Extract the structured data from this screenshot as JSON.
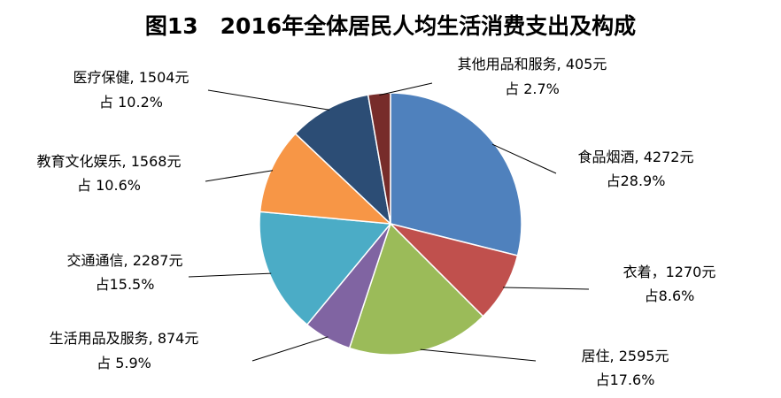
{
  "chart_data": {
    "type": "pie",
    "title": "图13　2016年全体居民人均生活消费支出及构成",
    "slices": [
      {
        "name": "食品烟酒",
        "value": 4272,
        "line1": "食品烟酒, 4272元",
        "line2": "占28.9%",
        "color": "#4F81BD"
      },
      {
        "name": "衣着",
        "value": 1270,
        "line1": "衣着，1270元",
        "line2": "占8.6%",
        "color": "#C0504D"
      },
      {
        "name": "居住",
        "value": 2595,
        "line1": "居住, 2595元",
        "line2": "占17.6%",
        "color": "#9BBB59"
      },
      {
        "name": "生活用品及服务",
        "value": 874,
        "line1": "生活用品及服务, 874元",
        "line2": "占 5.9%",
        "color": "#8064A2"
      },
      {
        "name": "交通通信",
        "value": 2287,
        "line1": "交通通信, 2287元",
        "line2": "占15.5%",
        "color": "#4BACC6"
      },
      {
        "name": "教育文化娱乐",
        "value": 1568,
        "line1": "教育文化娱乐, 1568元",
        "line2": "占 10.6%",
        "color": "#F79646"
      },
      {
        "name": "医疗保健",
        "value": 1504,
        "line1": "医疗保健, 1504元",
        "line2": "占 10.2%",
        "color": "#2C4D75"
      },
      {
        "name": "其他用品和服务",
        "value": 405,
        "line1": "其他用品和服务, 405元",
        "line2": "占 2.7%",
        "color": "#772C2A"
      }
    ]
  }
}
